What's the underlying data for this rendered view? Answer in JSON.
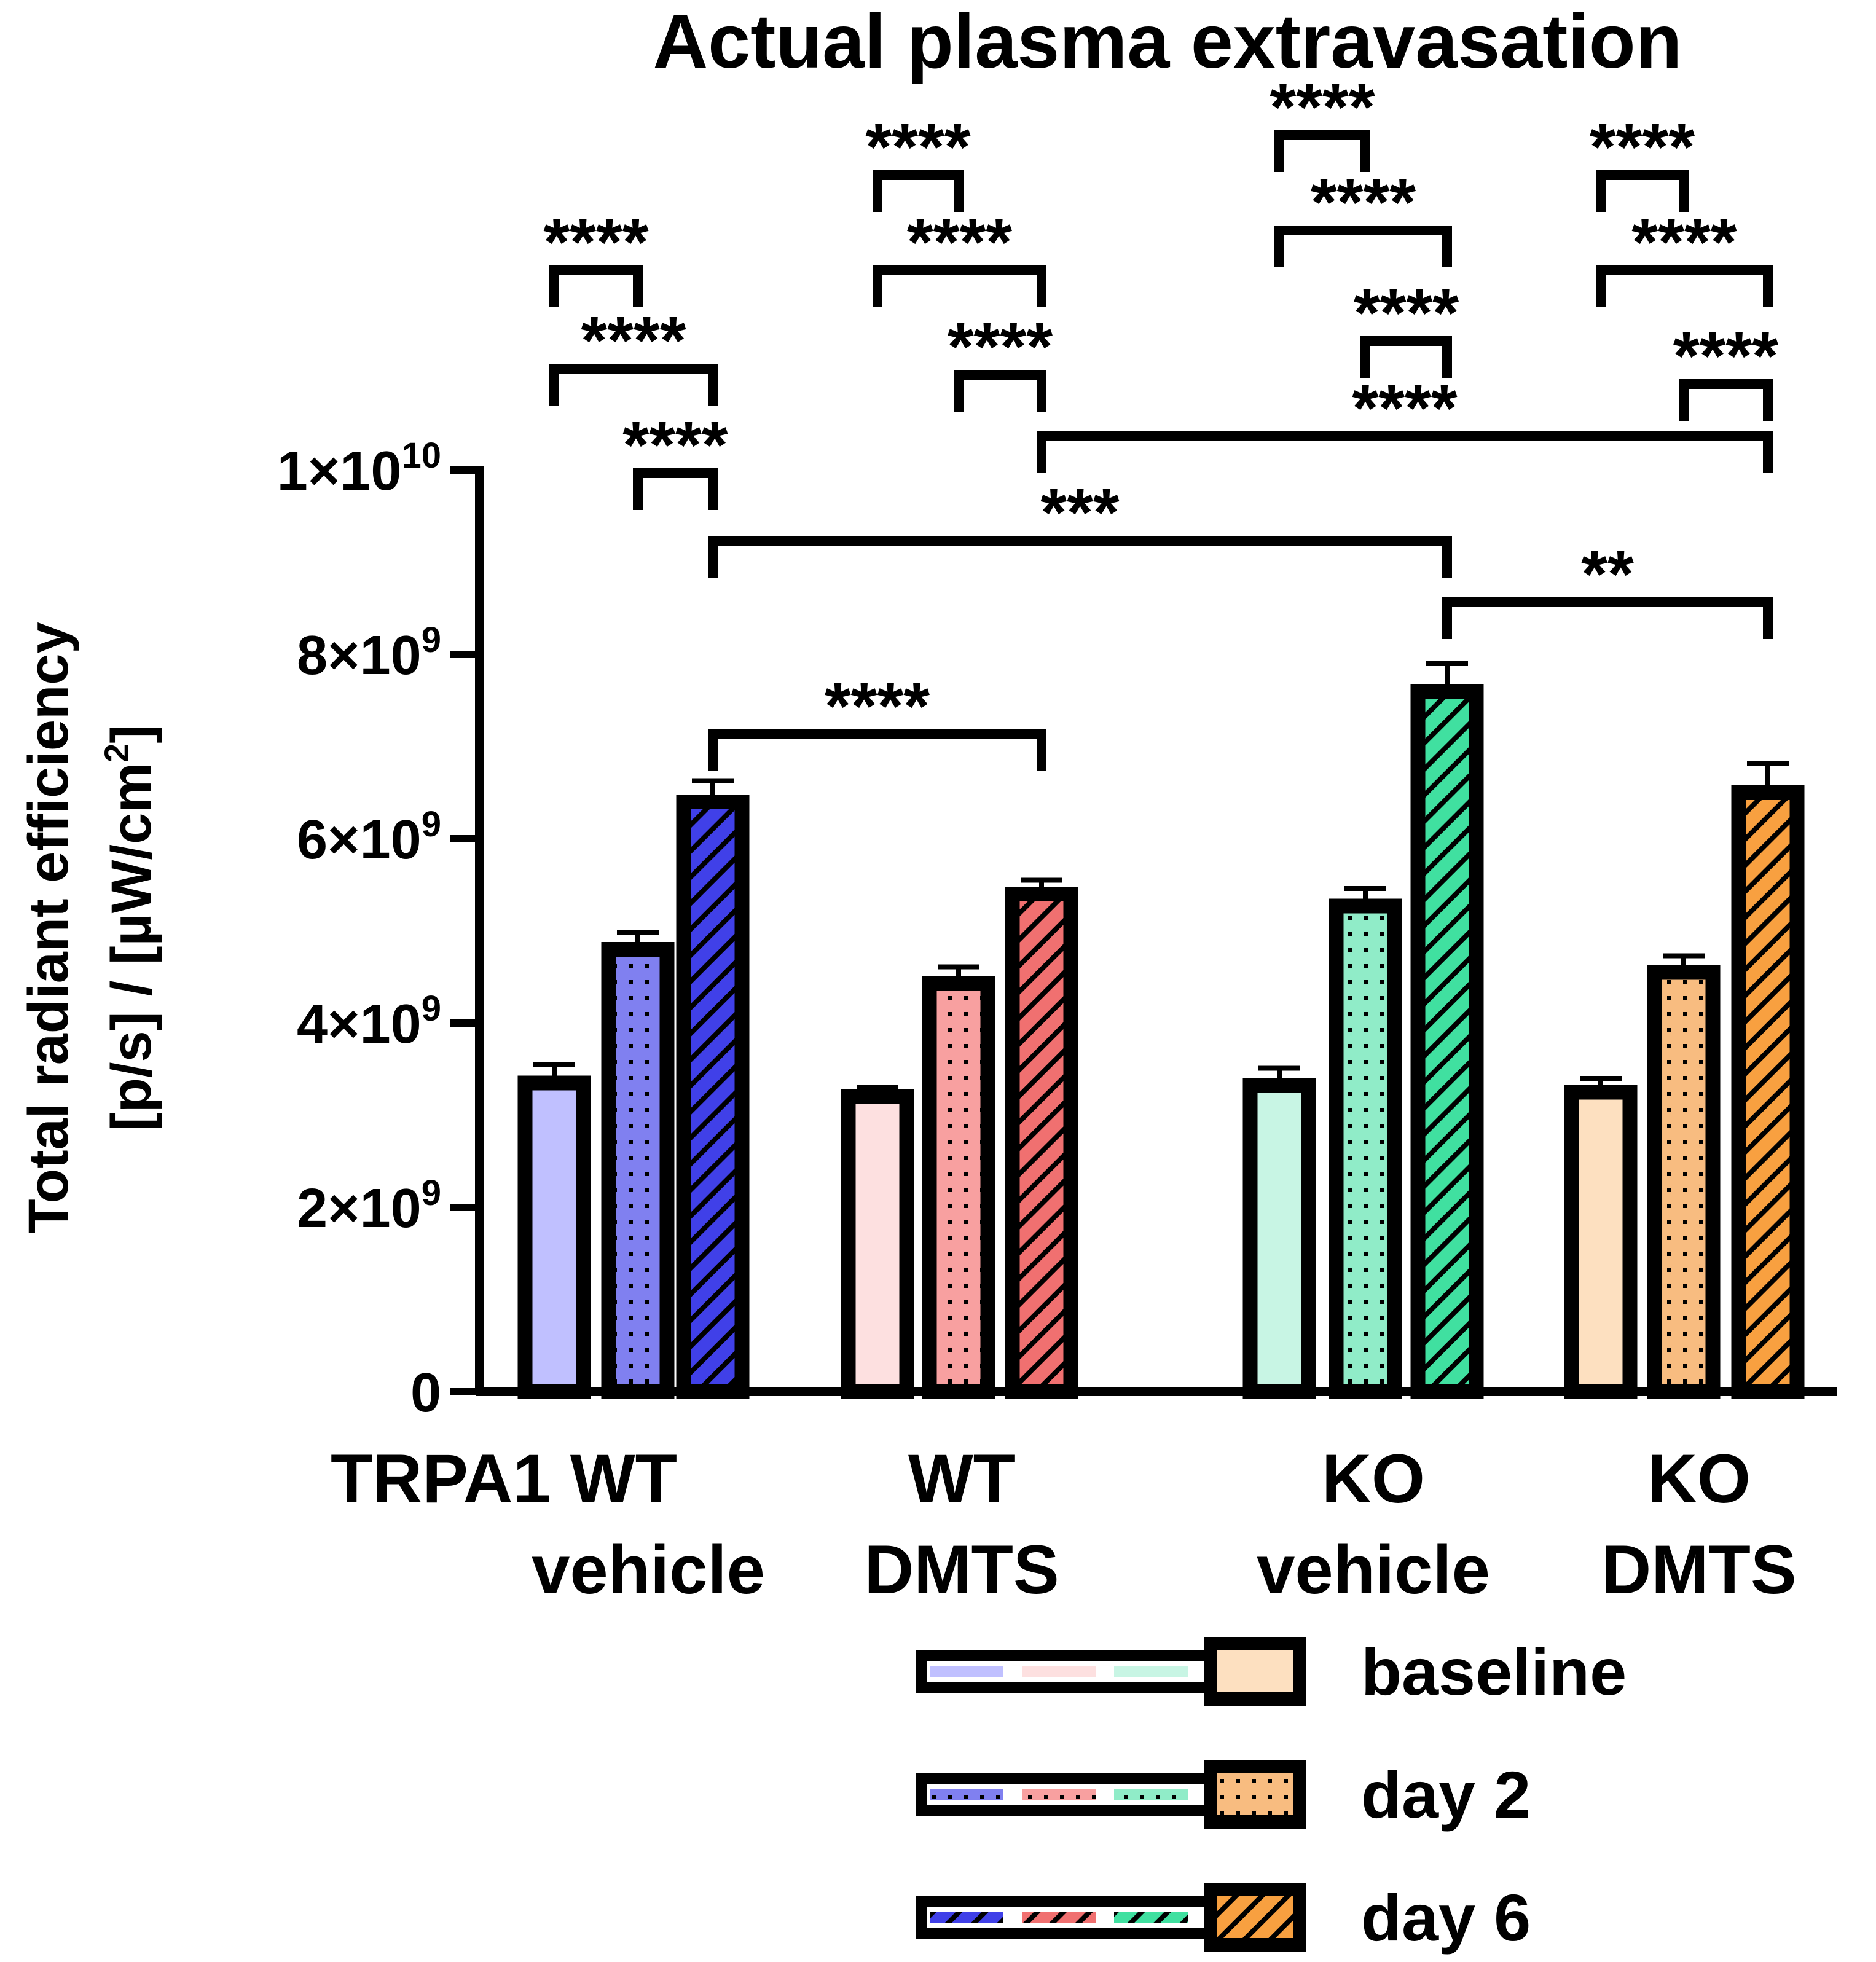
{
  "chart_data": {
    "type": "bar",
    "title": "Actual plasma extravasation",
    "ylabel_line1": "Total radiant efficiency",
    "ylabel_line2_main": "[p/s] / [µW/cm",
    "ylabel_line2_sup": "2",
    "ylabel_line2_end": "]",
    "ylim": [
      0,
      10000000000
    ],
    "yticks": [
      {
        "value": 0,
        "label": "0",
        "base": "0",
        "exp": ""
      },
      {
        "value": 2000000000,
        "label": "2×10^9",
        "base": "2×10",
        "exp": "9"
      },
      {
        "value": 4000000000,
        "label": "4×10^9",
        "base": "4×10",
        "exp": "9"
      },
      {
        "value": 6000000000,
        "label": "6×10^9",
        "base": "6×10",
        "exp": "9"
      },
      {
        "value": 8000000000,
        "label": "8×10^9",
        "base": "8×10",
        "exp": "9"
      },
      {
        "value": 10000000000,
        "label": "1×10^10",
        "base": "1×10",
        "exp": "10"
      }
    ],
    "groups": [
      {
        "name": "TRPA1 WT vehicle",
        "label_lines": [
          "TRPA1 WT",
          "vehicle"
        ],
        "colors": [
          "#c0c0ff",
          "#8080f0",
          "#4040e8"
        ]
      },
      {
        "name": "WT DMTS",
        "label_lines": [
          "WT",
          "DMTS"
        ],
        "colors": [
          "#fde0e0",
          "#f8a0a0",
          "#f07070"
        ]
      },
      {
        "name": "KO vehicle",
        "label_lines": [
          "KO",
          "vehicle"
        ],
        "colors": [
          "#c8f5e4",
          "#90ecc8",
          "#40e0a0"
        ]
      },
      {
        "name": "KO DMTS",
        "label_lines": [
          "KO",
          "DMTS"
        ],
        "colors": [
          "#fde0c0",
          "#f8bc80",
          "#f8a040"
        ]
      }
    ],
    "series": [
      {
        "name": "baseline",
        "pattern": "solid",
        "values": [
          3350000000,
          3200000000,
          3320000000,
          3250000000
        ],
        "errors": [
          200000000,
          100000000,
          190000000,
          150000000
        ]
      },
      {
        "name": "day 2",
        "pattern": "dots",
        "values": [
          4800000000,
          4430000000,
          5270000000,
          4550000000
        ],
        "errors": [
          180000000,
          180000000,
          190000000,
          180000000
        ]
      },
      {
        "name": "day 6",
        "pattern": "hatch",
        "values": [
          6400000000,
          5400000000,
          7600000000,
          6500000000
        ],
        "errors": [
          230000000,
          150000000,
          300000000,
          320000000
        ]
      }
    ],
    "significance": [
      {
        "from": [
          0,
          0
        ],
        "to": [
          0,
          1
        ],
        "label": "****"
      },
      {
        "from": [
          0,
          0
        ],
        "to": [
          0,
          2
        ],
        "label": "****"
      },
      {
        "from": [
          0,
          1
        ],
        "to": [
          0,
          2
        ],
        "label": "****"
      },
      {
        "from": [
          1,
          0
        ],
        "to": [
          1,
          1
        ],
        "label": "****"
      },
      {
        "from": [
          1,
          0
        ],
        "to": [
          1,
          2
        ],
        "label": "****"
      },
      {
        "from": [
          1,
          1
        ],
        "to": [
          1,
          2
        ],
        "label": "****"
      },
      {
        "from": [
          2,
          0
        ],
        "to": [
          2,
          1
        ],
        "label": "****"
      },
      {
        "from": [
          2,
          0
        ],
        "to": [
          2,
          2
        ],
        "label": "****"
      },
      {
        "from": [
          2,
          1
        ],
        "to": [
          2,
          2
        ],
        "label": "****"
      },
      {
        "from": [
          3,
          0
        ],
        "to": [
          3,
          1
        ],
        "label": "****"
      },
      {
        "from": [
          3,
          0
        ],
        "to": [
          3,
          2
        ],
        "label": "****"
      },
      {
        "from": [
          3,
          1
        ],
        "to": [
          3,
          2
        ],
        "label": "****"
      },
      {
        "from": [
          1,
          2
        ],
        "to": [
          3,
          2
        ],
        "label": "****"
      },
      {
        "from": [
          0,
          2
        ],
        "to": [
          2,
          2
        ],
        "label": "***"
      },
      {
        "from": [
          2,
          2
        ],
        "to": [
          3,
          2
        ],
        "label": "**"
      },
      {
        "from": [
          0,
          2
        ],
        "to": [
          1,
          2
        ],
        "label": "****"
      }
    ],
    "legend_placement": "bottom-right"
  }
}
